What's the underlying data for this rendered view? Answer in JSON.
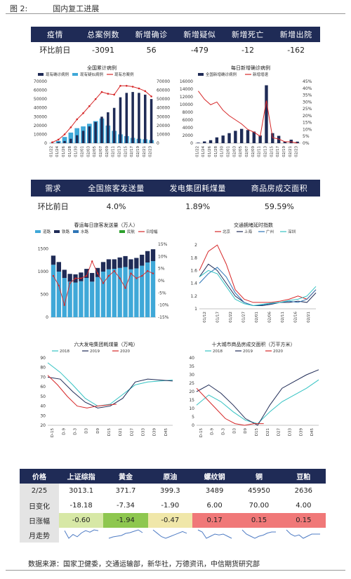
{
  "figure": {
    "label": "图 2:",
    "title": "国内复工进展"
  },
  "epi_table": {
    "headers": [
      "疫情",
      "总案例数",
      "新增确诊",
      "新增疑似",
      "新增死亡",
      "新增出院"
    ],
    "row": [
      "环比前日",
      "-3091",
      "56",
      "-479",
      "-12",
      "-162"
    ]
  },
  "demand_table": {
    "headers": [
      "需求",
      "全国旅客发送量",
      "发电集团耗煤量",
      "商品房成交面积"
    ],
    "row": [
      "环比前日",
      "4.0%",
      "1.89%",
      "59.59%"
    ]
  },
  "price_table": {
    "headers": [
      "价格",
      "上证综指",
      "黄金",
      "原油",
      "螺纹钢",
      "铜",
      "豆粕"
    ],
    "rows": [
      {
        "label": "2/25",
        "values": [
          "3013.1",
          "371.7",
          "399.3",
          "3489",
          "45950",
          "2636"
        ]
      },
      {
        "label": "日变化",
        "values": [
          "-18.18",
          "-7.34",
          "-1.90",
          "6.00",
          "70.00",
          "4.00"
        ]
      },
      {
        "label": "日涨幅",
        "values": [
          "-0.60",
          "-1.94",
          "-0.47",
          "0.17",
          "0.15",
          "0.15"
        ],
        "colors": [
          "#d7e8a6",
          "#8ec74f",
          "#f0e7a9",
          "#f07878",
          "#f07878",
          "#f07878"
        ]
      },
      {
        "label": "月走势",
        "values": [
          "",
          "",
          "",
          "",
          "",
          ""
        ]
      }
    ],
    "sparklines": [
      [
        3.0,
        2.9,
        2.95,
        2.92,
        2.97,
        3.0,
        2.98,
        3.01,
        3.0
      ],
      [
        3.0,
        3.1,
        3.15,
        3.2,
        3.35,
        3.4,
        3.5,
        3.6,
        3.4
      ],
      [
        3.3,
        3.2,
        3.1,
        3.05,
        3.1,
        3.15,
        3.2,
        3.25,
        3.2
      ],
      [
        3.4,
        3.35,
        3.2,
        3.25,
        3.3,
        3.28,
        3.3,
        3.25,
        3.2
      ],
      [
        3.4,
        3.2,
        3.1,
        3.0,
        3.1,
        3.15,
        3.25,
        3.3,
        3.3
      ],
      [
        3.4,
        3.3,
        3.25,
        3.28,
        3.2,
        3.25,
        3.3,
        3.3,
        3.3
      ]
    ]
  },
  "source": "数据来源：国家卫健委，交通运输部，新华社，万德资讯，中信期货研究部",
  "chart_data": [
    {
      "type": "bar",
      "title": "全国累计病例",
      "legend": [
        "现有确诊病例",
        "现有疑似病例",
        "现有总案例"
      ],
      "colors": [
        "#1f2b56",
        "#3fa8d8",
        "#d62728"
      ],
      "x": [
        "01/22",
        "01/24",
        "01/26",
        "01/28",
        "01/30",
        "02/01",
        "02/03",
        "02/05",
        "02/07",
        "02/09",
        "02/11",
        "02/13",
        "02/15",
        "02/17",
        "02/19",
        "02/21",
        "02/23"
      ],
      "confirmed": [
        500,
        1200,
        2500,
        5000,
        9000,
        14000,
        19000,
        24000,
        30000,
        35000,
        40000,
        52000,
        57000,
        58000,
        57000,
        55000,
        50000
      ],
      "suspected": [
        400,
        2500,
        7000,
        12000,
        17000,
        19000,
        22000,
        25000,
        28000,
        20000,
        14000,
        10000,
        8000,
        6000,
        5000,
        4500,
        3500
      ],
      "total": [
        1000,
        4000,
        10000,
        18000,
        27000,
        34000,
        42000,
        50000,
        58000,
        56000,
        55000,
        65000,
        65000,
        64000,
        62000,
        59000,
        53000
      ],
      "ylim": [
        0,
        70000
      ],
      "yticks": [
        0,
        10000,
        20000,
        30000,
        40000,
        50000,
        60000,
        70000
      ]
    },
    {
      "type": "bar",
      "title": "每日新增确诊病例",
      "legend": [
        "全国新增确诊病例",
        "新增增速"
      ],
      "colors": [
        "#1f2b56",
        "#d62728"
      ],
      "x": [
        "01/22",
        "01/24",
        "01/26",
        "01/28",
        "01/30",
        "02/01",
        "02/03",
        "02/05",
        "02/07",
        "02/09",
        "02/11",
        "02/13",
        "02/15",
        "02/17",
        "02/19",
        "02/21",
        "02/23"
      ],
      "values": [
        130,
        450,
        770,
        1500,
        1980,
        2600,
        3200,
        3700,
        3400,
        3000,
        2000,
        15000,
        2600,
        1900,
        400,
        900,
        400
      ],
      "growth": [
        0.38,
        0.32,
        0.28,
        0.3,
        0.24,
        0.2,
        0.17,
        0.14,
        0.1,
        0.08,
        0.05,
        0.31,
        0.04,
        0.03,
        0.01,
        0.01,
        0.0
      ],
      "ylim": [
        0,
        16000
      ],
      "yticks": [
        0,
        2000,
        4000,
        6000,
        8000,
        10000,
        12000,
        14000,
        16000
      ],
      "y2ticks": [
        "0%",
        "5%",
        "10%",
        "15%",
        "20%",
        "25%",
        "30%",
        "35%",
        "40%",
        "45%"
      ]
    },
    {
      "type": "bar",
      "title": "春运每日旅客发送量（万人）",
      "legend": [
        "道路",
        "铁路",
        "水路",
        "民航",
        "日增幅"
      ],
      "colors": [
        "#3fa8d8",
        "#1f2b56",
        "#2e75b6",
        "#2ca02c",
        "#d62728"
      ],
      "yticks": [
        0,
        500,
        1000,
        1500
      ],
      "y2ticks": [
        "-15%",
        "-10%",
        "-5%",
        "0%",
        "5%",
        "10%",
        "15%"
      ],
      "road": [
        1150,
        1000,
        860,
        780,
        760,
        790,
        860,
        780,
        880,
        1000,
        1050,
        1060,
        1080,
        1100,
        1050,
        1070,
        1130,
        1200,
        1230
      ],
      "rail": [
        200,
        210,
        180,
        170,
        180,
        190,
        200,
        190,
        200,
        210,
        220,
        210,
        230,
        240,
        220,
        230,
        240,
        250,
        260
      ],
      "daily": [
        2,
        -2,
        -10,
        -1,
        1,
        1,
        2,
        8,
        3,
        -1,
        2,
        4,
        1,
        -3,
        3,
        1,
        2,
        4,
        3
      ]
    },
    {
      "type": "line",
      "title": "交通拥堵延时指数",
      "series": [
        {
          "name": "北京"
        },
        {
          "name": "上海"
        },
        {
          "name": "广州"
        },
        {
          "name": "深圳"
        }
      ],
      "colors": [
        "#d62728",
        "#1f2b56",
        "#2e75b6",
        "#34c3c3"
      ],
      "x": [
        "01/12",
        "01/17",
        "01/22",
        "01/27",
        "02/01",
        "02/06",
        "02/11",
        "02/16",
        "02/21"
      ],
      "yticks": [
        1.0,
        1.2,
        1.4,
        1.6,
        1.8,
        2.0
      ],
      "ylim": [
        1.0,
        2.1
      ]
    },
    {
      "type": "line",
      "title": "六大发电集团耗煤量（万吨）",
      "series": [
        {
          "name": "2018"
        },
        {
          "name": "2019"
        },
        {
          "name": "2020"
        }
      ],
      "colors": [
        "#34c3c3",
        "#1f2b56",
        "#d62728"
      ],
      "x": [
        "D-15",
        "D-9",
        "D-3",
        "D3",
        "D9",
        "D15",
        "D21",
        "D27",
        "D33",
        "D39",
        "D45"
      ],
      "yticks": [
        20,
        30,
        40,
        50,
        60,
        70,
        80,
        90
      ],
      "ylim": [
        20,
        90
      ]
    },
    {
      "type": "line",
      "title": "十大城市商品房成交面积（万平方米）",
      "series": [
        {
          "name": "2018"
        },
        {
          "name": "2019"
        },
        {
          "name": "2020"
        }
      ],
      "colors": [
        "#34c3c3",
        "#1f2b56",
        "#d62728"
      ],
      "x": [
        "D-15",
        "D-9",
        "D-3",
        "D3",
        "D9",
        "D15",
        "D21",
        "D27",
        "D33",
        "D39",
        "D45"
      ],
      "yticks": [
        0,
        5,
        10,
        15,
        20,
        25,
        30,
        35,
        40
      ],
      "ylim": [
        0,
        40
      ]
    }
  ]
}
